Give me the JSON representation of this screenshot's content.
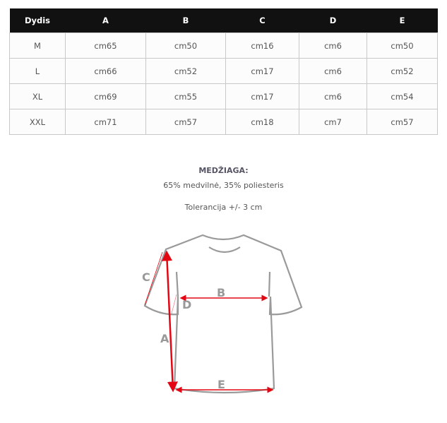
{
  "table": {
    "headers": [
      "Dydis",
      "A",
      "B",
      "C",
      "D",
      "E"
    ],
    "rows": [
      [
        "M",
        "cm65",
        "cm50",
        "cm16",
        "cm6",
        "cm50"
      ],
      [
        "L",
        "cm66",
        "cm52",
        "cm17",
        "cm6",
        "cm52"
      ],
      [
        "XL",
        "cm69",
        "cm55",
        "cm17",
        "cm6",
        "cm54"
      ],
      [
        "XXL",
        "cm71",
        "cm57",
        "cm18",
        "cm7",
        "cm57"
      ]
    ]
  },
  "material": {
    "title": "MEDŽIAGA:",
    "composition": "65% medvilnė, 35% poliesteris",
    "tolerance": "Tolerancija +/- 3 cm"
  },
  "diagram": {
    "labels": {
      "A": "A",
      "B": "B",
      "C": "C",
      "D": "D",
      "E": "E"
    },
    "arrow_color": "#e30613",
    "outline_color": "#9a9a9a"
  }
}
